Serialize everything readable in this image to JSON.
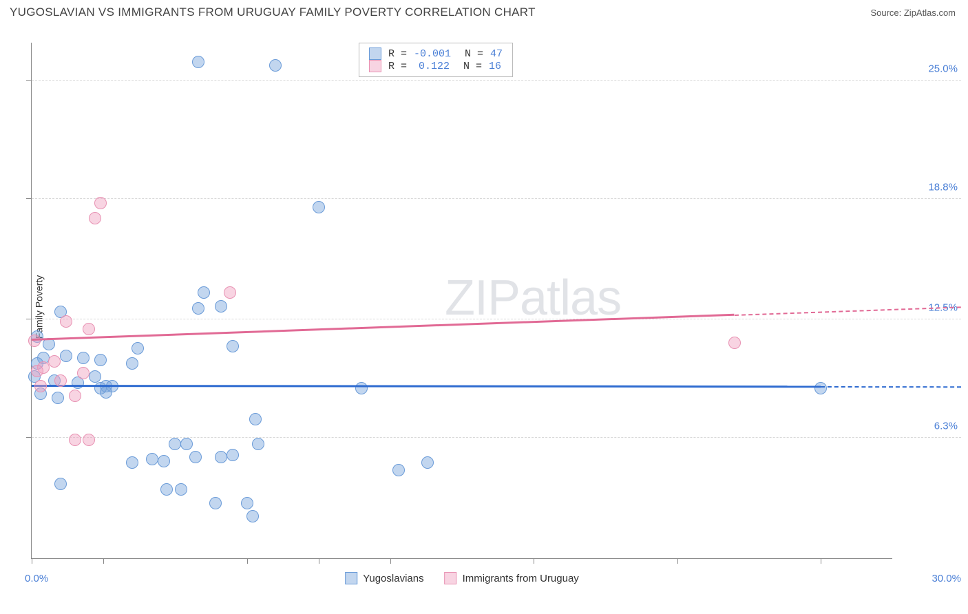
{
  "header": {
    "title": "YUGOSLAVIAN VS IMMIGRANTS FROM URUGUAY FAMILY POVERTY CORRELATION CHART",
    "source": "Source: ZipAtlas.com"
  },
  "chart": {
    "type": "scatter",
    "ylabel": "Family Poverty",
    "xlim": [
      0,
      30
    ],
    "ylim": [
      0,
      27
    ],
    "background_color": "#ffffff",
    "grid_color": "#d8d8d8",
    "axis_color": "#888888",
    "label_fontsize": 14,
    "yticks": [
      {
        "v": 6.3,
        "label": "6.3%"
      },
      {
        "v": 12.5,
        "label": "12.5%"
      },
      {
        "v": 18.8,
        "label": "18.8%"
      },
      {
        "v": 25.0,
        "label": "25.0%"
      }
    ],
    "xticks": [
      0,
      2.5,
      7.5,
      10.0,
      12.5,
      17.5,
      22.5,
      27.5
    ],
    "xaxis_min_label": "0.0%",
    "xaxis_max_label": "30.0%",
    "tick_color": "#4a7fd6",
    "watermark": {
      "text_a": "ZIP",
      "text_b": "atlas"
    },
    "series": [
      {
        "name": "Yugoslavians",
        "fill": "rgba(120,165,220,0.45)",
        "stroke": "#6a9bd8",
        "line_color": "#2e6bd0",
        "marker_radius": 9,
        "r_value": "-0.001",
        "n_value": "47",
        "trend": {
          "x1": 0,
          "y1": 9.0,
          "x2": 30,
          "y2": 8.95,
          "x_max_actual": 27.5
        },
        "points": [
          {
            "x": 5.8,
            "y": 26.0
          },
          {
            "x": 8.5,
            "y": 25.8
          },
          {
            "x": 10.0,
            "y": 18.4
          },
          {
            "x": 6.0,
            "y": 13.9
          },
          {
            "x": 5.8,
            "y": 13.1
          },
          {
            "x": 6.6,
            "y": 13.2
          },
          {
            "x": 0.2,
            "y": 11.6
          },
          {
            "x": 1.0,
            "y": 12.9
          },
          {
            "x": 0.6,
            "y": 11.2
          },
          {
            "x": 0.4,
            "y": 10.5
          },
          {
            "x": 7.0,
            "y": 11.1
          },
          {
            "x": 0.2,
            "y": 10.2
          },
          {
            "x": 1.2,
            "y": 10.6
          },
          {
            "x": 1.8,
            "y": 10.5
          },
          {
            "x": 2.4,
            "y": 10.4
          },
          {
            "x": 3.5,
            "y": 10.2
          },
          {
            "x": 3.7,
            "y": 11.0
          },
          {
            "x": 0.1,
            "y": 9.5
          },
          {
            "x": 0.8,
            "y": 9.3
          },
          {
            "x": 1.6,
            "y": 9.2
          },
          {
            "x": 2.2,
            "y": 9.5
          },
          {
            "x": 2.6,
            "y": 9.0
          },
          {
            "x": 2.4,
            "y": 8.9
          },
          {
            "x": 2.8,
            "y": 9.0
          },
          {
            "x": 0.3,
            "y": 8.6
          },
          {
            "x": 0.9,
            "y": 8.4
          },
          {
            "x": 2.6,
            "y": 8.7
          },
          {
            "x": 11.5,
            "y": 8.9
          },
          {
            "x": 27.5,
            "y": 8.9
          },
          {
            "x": 7.8,
            "y": 7.3
          },
          {
            "x": 5.0,
            "y": 6.0
          },
          {
            "x": 5.4,
            "y": 6.0
          },
          {
            "x": 7.9,
            "y": 6.0
          },
          {
            "x": 5.7,
            "y": 5.3
          },
          {
            "x": 7.0,
            "y": 5.4
          },
          {
            "x": 6.6,
            "y": 5.3
          },
          {
            "x": 3.5,
            "y": 5.0
          },
          {
            "x": 4.2,
            "y": 5.2
          },
          {
            "x": 4.6,
            "y": 5.1
          },
          {
            "x": 12.8,
            "y": 4.6
          },
          {
            "x": 13.8,
            "y": 5.0
          },
          {
            "x": 1.0,
            "y": 3.9
          },
          {
            "x": 4.7,
            "y": 3.6
          },
          {
            "x": 5.2,
            "y": 3.6
          },
          {
            "x": 6.4,
            "y": 2.9
          },
          {
            "x": 7.5,
            "y": 2.9
          },
          {
            "x": 7.7,
            "y": 2.2
          }
        ]
      },
      {
        "name": "Immigrants from Uruguay",
        "fill": "rgba(240,160,190,0.45)",
        "stroke": "#e892b3",
        "line_color": "#e16a95",
        "marker_radius": 9,
        "r_value": "0.122",
        "n_value": "16",
        "trend": {
          "x1": 0,
          "y1": 11.4,
          "x2": 30,
          "y2": 13.0,
          "x_max_actual": 24.5
        },
        "points": [
          {
            "x": 2.4,
            "y": 18.6
          },
          {
            "x": 2.2,
            "y": 17.8
          },
          {
            "x": 6.9,
            "y": 13.9
          },
          {
            "x": 1.2,
            "y": 12.4
          },
          {
            "x": 0.1,
            "y": 11.4
          },
          {
            "x": 2.0,
            "y": 12.0
          },
          {
            "x": 24.5,
            "y": 11.3
          },
          {
            "x": 0.4,
            "y": 10.0
          },
          {
            "x": 0.8,
            "y": 10.3
          },
          {
            "x": 1.8,
            "y": 9.7
          },
          {
            "x": 1.0,
            "y": 9.3
          },
          {
            "x": 0.3,
            "y": 9.0
          },
          {
            "x": 1.5,
            "y": 8.5
          },
          {
            "x": 1.5,
            "y": 6.2
          },
          {
            "x": 2.0,
            "y": 6.2
          },
          {
            "x": 0.2,
            "y": 9.8
          }
        ]
      }
    ]
  }
}
